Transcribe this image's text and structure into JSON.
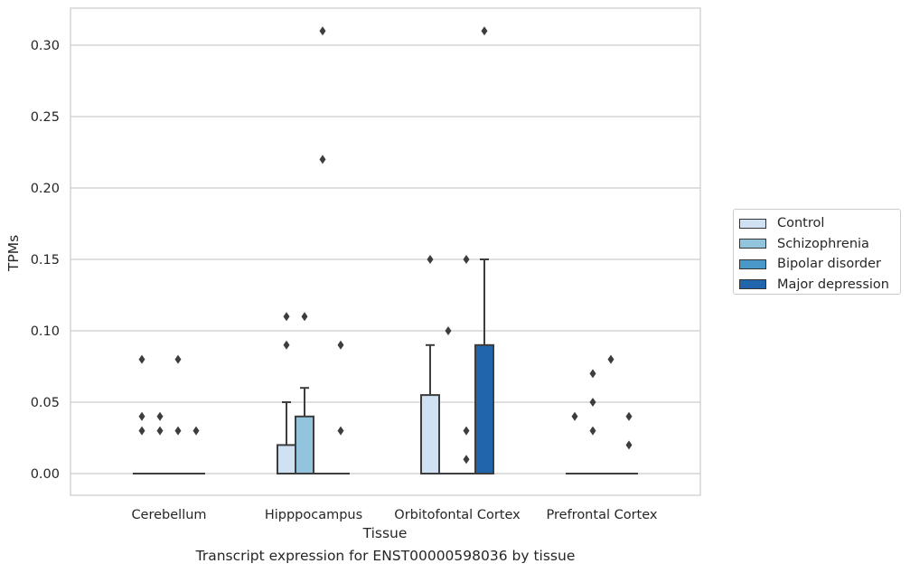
{
  "chart_data": {
    "type": "box",
    "caption": "Transcript expression for ENST00000598036 by tissue",
    "xlabel": "Tissue",
    "ylabel": "TPMs",
    "ylim": [
      -0.015,
      0.325
    ],
    "yticks": [
      "0.00",
      "0.05",
      "0.10",
      "0.15",
      "0.20",
      "0.25",
      "0.30"
    ],
    "grid": true,
    "legend_placement": "right",
    "categories": [
      "Cerebellum",
      "Hipppocampus",
      "Orbitofontal Cortex",
      "Prefrontal Cortex"
    ],
    "series": [
      {
        "name": "Control",
        "color": "#cfe1f2",
        "boxes": [
          {
            "q1": 0,
            "median": 0,
            "q3": 0,
            "whisker_low": 0,
            "whisker_high": 0,
            "outliers": [
              0.03,
              0.04,
              0.08
            ]
          },
          {
            "q1": 0,
            "median": 0,
            "q3": 0.02,
            "whisker_low": 0,
            "whisker_high": 0.05,
            "outliers": [
              0.09,
              0.11
            ]
          },
          {
            "q1": 0,
            "median": 0,
            "q3": 0.055,
            "whisker_low": 0,
            "whisker_high": 0.09,
            "outliers": [
              0.15
            ]
          },
          {
            "q1": 0,
            "median": 0,
            "q3": 0,
            "whisker_low": 0,
            "whisker_high": 0,
            "outliers": [
              0.04
            ]
          }
        ]
      },
      {
        "name": "Schizophrenia",
        "color": "#93c4de",
        "boxes": [
          {
            "q1": 0,
            "median": 0,
            "q3": 0,
            "whisker_low": 0,
            "whisker_high": 0,
            "outliers": [
              0.03,
              0.04
            ]
          },
          {
            "q1": 0,
            "median": 0,
            "q3": 0.04,
            "whisker_low": 0,
            "whisker_high": 0.06,
            "outliers": [
              0.11
            ]
          },
          {
            "q1": 0,
            "median": 0,
            "q3": 0,
            "whisker_low": 0,
            "whisker_high": 0,
            "outliers": [
              0.1
            ]
          },
          {
            "q1": 0,
            "median": 0,
            "q3": 0,
            "whisker_low": 0,
            "whisker_high": 0,
            "outliers": [
              0.03,
              0.05,
              0.07
            ]
          }
        ]
      },
      {
        "name": "Bipolar disorder",
        "color": "#4a98c9",
        "boxes": [
          {
            "q1": 0,
            "median": 0,
            "q3": 0,
            "whisker_low": 0,
            "whisker_high": 0,
            "outliers": [
              0.03,
              0.08
            ]
          },
          {
            "q1": 0,
            "median": 0,
            "q3": 0,
            "whisker_low": 0,
            "whisker_high": 0,
            "outliers": [
              0.22,
              0.31
            ]
          },
          {
            "q1": 0,
            "median": 0,
            "q3": 0,
            "whisker_low": 0,
            "whisker_high": 0,
            "outliers": [
              0.01,
              0.03,
              0.15
            ]
          },
          {
            "q1": 0,
            "median": 0,
            "q3": 0,
            "whisker_low": 0,
            "whisker_high": 0,
            "outliers": [
              0.08
            ]
          }
        ]
      },
      {
        "name": "Major depression",
        "color": "#2166ac",
        "boxes": [
          {
            "q1": 0,
            "median": 0,
            "q3": 0,
            "whisker_low": 0,
            "whisker_high": 0,
            "outliers": [
              0.03
            ]
          },
          {
            "q1": 0,
            "median": 0,
            "q3": 0,
            "whisker_low": 0,
            "whisker_high": 0,
            "outliers": [
              0.03,
              0.09
            ]
          },
          {
            "q1": 0,
            "median": 0,
            "q3": 0.09,
            "whisker_low": 0,
            "whisker_high": 0.15,
            "outliers": [
              0.31
            ]
          },
          {
            "q1": 0,
            "median": 0,
            "q3": 0,
            "whisker_low": 0,
            "whisker_high": 0,
            "outliers": [
              0.02,
              0.04
            ]
          }
        ]
      }
    ]
  }
}
